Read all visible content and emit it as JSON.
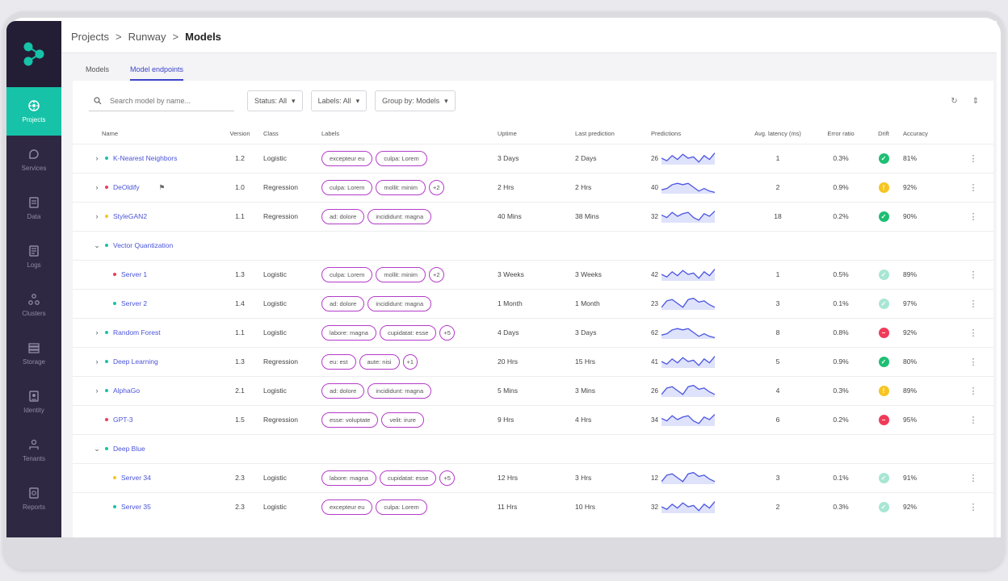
{
  "breadcrumb": [
    "Projects",
    "Runway",
    "Models"
  ],
  "tabs": [
    "Models",
    "Model endpoints"
  ],
  "active_tab": 1,
  "sidebar": [
    {
      "label": "Projects",
      "icon": "projects-icon",
      "active": true
    },
    {
      "label": "Services",
      "icon": "services-icon",
      "active": false
    },
    {
      "label": "Data",
      "icon": "data-icon",
      "active": false
    },
    {
      "label": "Logs",
      "icon": "logs-icon",
      "active": false
    },
    {
      "label": "Clusters",
      "icon": "clusters-icon",
      "active": false
    },
    {
      "label": "Storage",
      "icon": "storage-icon",
      "active": false
    },
    {
      "label": "Identity",
      "icon": "identity-icon",
      "active": false
    },
    {
      "label": "Tenants",
      "icon": "tenants-icon",
      "active": false
    },
    {
      "label": "Reports",
      "icon": "reports-icon",
      "active": false
    }
  ],
  "toolbar": {
    "search_placeholder": "Search model by name...",
    "status": "Status: All",
    "labels": "Labels: All",
    "group_by": "Group by: Models"
  },
  "columns": [
    "Name",
    "Version",
    "Class",
    "Labels",
    "Uptime",
    "Last prediction",
    "Predictions",
    "Avg. latency (ms)",
    "Error ratio",
    "Drift",
    "Accuracy"
  ],
  "colors": {
    "green": "#1dbf73",
    "red": "#ef3b59",
    "yellow": "#f6c522",
    "teal": "#16c3a8",
    "accent": "#3c44c8",
    "pill": "#b43bc9"
  },
  "rows": [
    {
      "type": "row",
      "expand": true,
      "dot": "teal",
      "name": "K-Nearest Neighbors",
      "version": "1.2",
      "class": "Logistic",
      "labels": [
        "excepteur eu",
        "culpa: Lorem"
      ],
      "more": "",
      "uptime": "3 Days",
      "last": "2 Days",
      "pred": "26",
      "spark": 0,
      "latency": "1",
      "error": "0.3%",
      "drift": "ok",
      "accuracy": "81%"
    },
    {
      "type": "row",
      "expand": true,
      "dot": "red",
      "name": "DeOldify",
      "flag": true,
      "version": "1.0",
      "class": "Regression",
      "labels": [
        "culpa: Lorem",
        "mollit: minim"
      ],
      "more": "+2",
      "uptime": "2 Hrs",
      "last": "2 Hrs",
      "pred": "40",
      "spark": 1,
      "latency": "2",
      "error": "0.9%",
      "drift": "warn",
      "accuracy": "92%"
    },
    {
      "type": "row",
      "expand": true,
      "dot": "yellow",
      "name": "StyleGAN2",
      "version": "1.1",
      "class": "Regression",
      "labels": [
        "ad: dolore",
        "incididunt: magna"
      ],
      "more": "",
      "uptime": "40 Mins",
      "last": "38 Mins",
      "pred": "32",
      "spark": 2,
      "latency": "18",
      "error": "0.2%",
      "drift": "ok",
      "accuracy": "90%"
    },
    {
      "type": "group",
      "name": "Vector Quantization",
      "dot": "teal"
    },
    {
      "type": "child",
      "dot": "red",
      "name": "Server 1",
      "version": "1.3",
      "class": "Logistic",
      "labels": [
        "culpa: Lorem",
        "mollit: minim"
      ],
      "more": "+2",
      "uptime": "3 Weeks",
      "last": "3 Weeks",
      "pred": "42",
      "spark": 0,
      "latency": "1",
      "error": "0.5%",
      "drift": "light",
      "accuracy": "89%"
    },
    {
      "type": "child",
      "dot": "teal",
      "name": "Server 2",
      "version": "1.4",
      "class": "Logistic",
      "labels": [
        "ad: dolore",
        "incididunt: magna"
      ],
      "more": "",
      "uptime": "1 Month",
      "last": "1 Month",
      "pred": "23",
      "spark": 3,
      "latency": "3",
      "error": "0.1%",
      "drift": "light",
      "accuracy": "97%"
    },
    {
      "type": "row",
      "expand": true,
      "dot": "teal",
      "name": "Random Forest",
      "version": "1.1",
      "class": "Logistic",
      "labels": [
        "labore: magna",
        "cupidatat: esse"
      ],
      "more": "+5",
      "uptime": "4 Days",
      "last": "3 Days",
      "pred": "62",
      "spark": 1,
      "latency": "8",
      "error": "0.8%",
      "drift": "bad",
      "accuracy": "92%"
    },
    {
      "type": "row",
      "expand": true,
      "dot": "teal",
      "name": "Deep Learning",
      "version": "1.3",
      "class": "Regression",
      "labels": [
        "eu: est",
        "aute: nisi"
      ],
      "more": "+1",
      "uptime": "20 Hrs",
      "last": "15 Hrs",
      "pred": "41",
      "spark": 0,
      "latency": "5",
      "error": "0.9%",
      "drift": "ok",
      "accuracy": "80%"
    },
    {
      "type": "row",
      "expand": true,
      "dot": "teal",
      "name": "AlphaGo",
      "version": "2.1",
      "class": "Logistic",
      "labels": [
        "ad: dolore",
        "incididunt: magna"
      ],
      "more": "",
      "uptime": "5 Mins",
      "last": "3 Mins",
      "pred": "26",
      "spark": 3,
      "latency": "4",
      "error": "0.3%",
      "drift": "warn",
      "accuracy": "89%"
    },
    {
      "type": "row",
      "expand": false,
      "dot": "red",
      "name": "GPT-3",
      "version": "1.5",
      "class": "Regression",
      "labels": [
        "esse: voluptate",
        "velit: irure"
      ],
      "more": "",
      "uptime": "9 Hrs",
      "last": "4 Hrs",
      "pred": "34",
      "spark": 2,
      "latency": "6",
      "error": "0.2%",
      "drift": "bad",
      "accuracy": "95%"
    },
    {
      "type": "group",
      "name": "Deep Blue",
      "dot": "teal"
    },
    {
      "type": "child",
      "dot": "yellow",
      "name": "Server 34",
      "version": "2.3",
      "class": "Logistic",
      "labels": [
        "labore: magna",
        "cupidatat: esse"
      ],
      "more": "+5",
      "uptime": "12 Hrs",
      "last": "3 Hrs",
      "pred": "12",
      "spark": 3,
      "latency": "3",
      "error": "0.1%",
      "drift": "light",
      "accuracy": "91%"
    },
    {
      "type": "child",
      "dot": "teal",
      "name": "Server 35",
      "version": "2.3",
      "class": "Logistic",
      "labels": [
        "excepteur eu",
        "culpa: Lorem"
      ],
      "more": "",
      "uptime": "11 Hrs",
      "last": "10 Hrs",
      "pred": "32",
      "spark": 0,
      "latency": "2",
      "error": "0.3%",
      "drift": "light",
      "accuracy": "92%"
    }
  ]
}
